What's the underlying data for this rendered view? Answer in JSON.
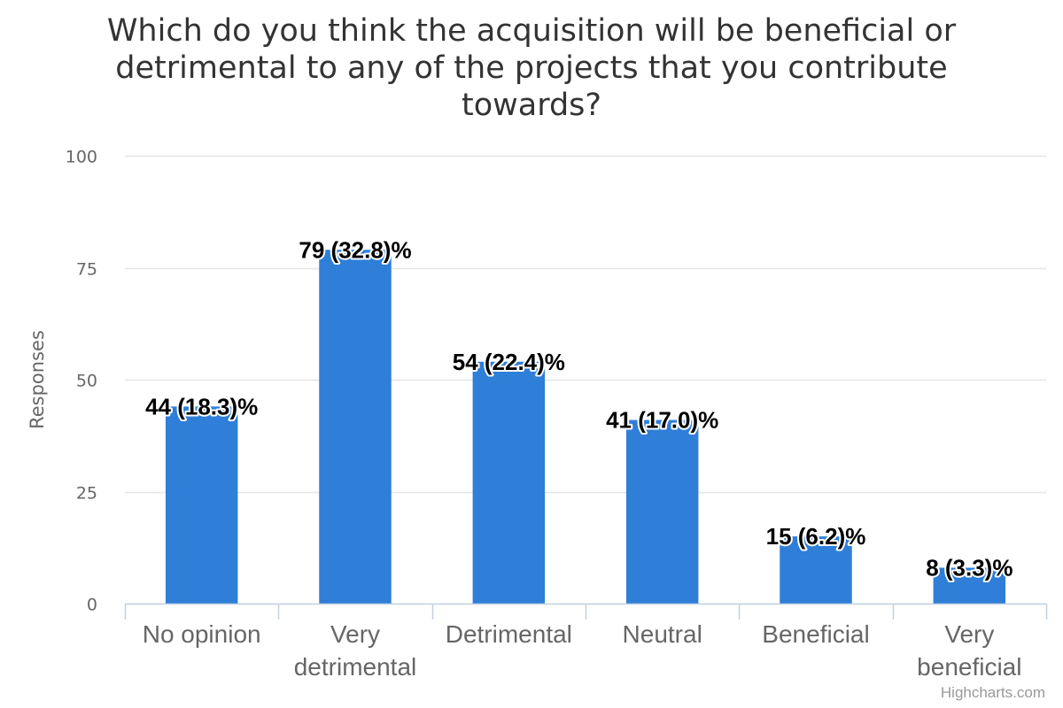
{
  "chart_data": {
    "type": "bar",
    "title": "Which do you think the acquisition will be beneficial or detrimental to any of the projects that you contribute towards?",
    "ylabel": "Responses",
    "xlabel": "",
    "categories": [
      "No opinion",
      "Very detrimental",
      "Detrimental",
      "Neutral",
      "Beneficial",
      "Very beneficial"
    ],
    "category_lines": [
      [
        "No opinion"
      ],
      [
        "Very",
        "detrimental"
      ],
      [
        "Detrimental"
      ],
      [
        "Neutral"
      ],
      [
        "Beneficial"
      ],
      [
        "Very",
        "beneficial"
      ]
    ],
    "values": [
      44,
      79,
      54,
      41,
      15,
      8
    ],
    "data_labels": [
      "44 (18.3)%",
      "79 (32.8)%",
      "54 (22.4)%",
      "41 (17.0)%",
      "15 (6.2)%",
      "8 (3.3)%"
    ],
    "ylim": [
      0,
      100
    ],
    "yticks": [
      0,
      25,
      50,
      75,
      100
    ],
    "grid": true,
    "legend": "none",
    "bar_color": "#2f7ed8",
    "credits": "Highcharts.com"
  }
}
